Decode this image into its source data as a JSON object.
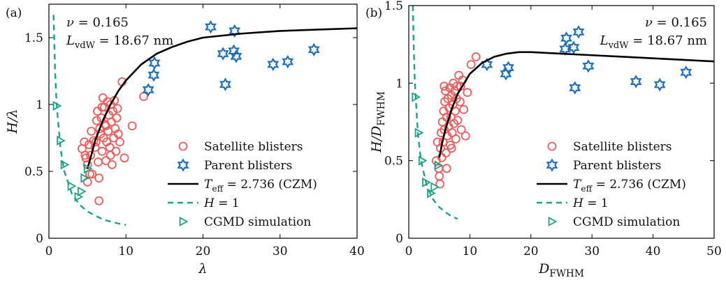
{
  "chart_data": [
    {
      "id": "a",
      "type": "scatter",
      "panel_label": "(a)",
      "xlabel": "λ",
      "ylabel": "H/λ",
      "xlim": [
        0,
        40
      ],
      "ylim": [
        0,
        1.75
      ],
      "xticks": [
        0,
        10,
        20,
        30,
        40
      ],
      "xtick_labels": [
        "0",
        "10",
        "20",
        "30",
        "40"
      ],
      "yticks": [
        0,
        0.5,
        1,
        1.5
      ],
      "ytick_labels": [
        "0",
        "0.5",
        "1",
        "1.5"
      ],
      "grid": false,
      "annotation": {
        "nu": "ν = 0.165",
        "lvdw": "L_vdW = 18.67 nm",
        "position": "top-left"
      },
      "legend": {
        "position": "lower-right",
        "entries": [
          "Satellite blisters",
          "Parent blisters",
          "T_eff = 2.736 (CZM)",
          "H = 1",
          "CGMD simulation"
        ]
      },
      "series": [
        {
          "name": "Satellite blisters",
          "kind": "scatter",
          "marker": "circle",
          "color": "#f05a5a",
          "points": [
            [
              4.3,
              0.67
            ],
            [
              4.6,
              0.72
            ],
            [
              4.8,
              0.6
            ],
            [
              5.0,
              0.55
            ],
            [
              5.2,
              0.7
            ],
            [
              5.4,
              0.62
            ],
            [
              5.6,
              0.48
            ],
            [
              5.8,
              0.73
            ],
            [
              6.0,
              0.68
            ],
            [
              6.2,
              0.88
            ],
            [
              6.3,
              0.95
            ],
            [
              6.4,
              0.57
            ],
            [
              6.5,
              0.45
            ],
            [
              6.6,
              0.82
            ],
            [
              6.7,
              0.78
            ],
            [
              6.8,
              0.9
            ],
            [
              6.9,
              0.65
            ],
            [
              7.0,
              1.05
            ],
            [
              7.1,
              0.75
            ],
            [
              7.2,
              0.98
            ],
            [
              7.3,
              0.85
            ],
            [
              7.4,
              0.58
            ],
            [
              7.5,
              0.72
            ],
            [
              7.6,
              1.02
            ],
            [
              7.7,
              0.8
            ],
            [
              7.8,
              0.92
            ],
            [
              7.9,
              0.68
            ],
            [
              8.0,
              1.0
            ],
            [
              8.1,
              0.87
            ],
            [
              8.2,
              0.55
            ],
            [
              8.3,
              0.95
            ],
            [
              8.4,
              0.75
            ],
            [
              8.5,
              1.03
            ],
            [
              8.6,
              0.82
            ],
            [
              8.7,
              0.65
            ],
            [
              8.8,
              0.9
            ],
            [
              8.9,
              0.97
            ],
            [
              9.0,
              0.78
            ],
            [
              9.2,
              0.72
            ],
            [
              9.5,
              1.17
            ],
            [
              9.8,
              0.6
            ],
            [
              10.8,
              0.84
            ],
            [
              12.3,
              1.06
            ],
            [
              6.5,
              0.28
            ],
            [
              5.0,
              0.42
            ],
            [
              5.3,
              0.48
            ],
            [
              6.1,
              0.72
            ],
            [
              7.4,
              0.84
            ],
            [
              8.0,
              0.62
            ],
            [
              4.7,
              0.62
            ],
            [
              5.5,
              0.8
            ],
            [
              6.9,
              0.98
            ]
          ]
        },
        {
          "name": "Parent blisters",
          "kind": "scatter",
          "marker": "star",
          "color": "#1f6fc0",
          "points": [
            [
              12.9,
              1.11
            ],
            [
              13.6,
              1.22
            ],
            [
              13.7,
              1.31
            ],
            [
              21.0,
              1.58
            ],
            [
              22.6,
              1.38
            ],
            [
              22.9,
              1.15
            ],
            [
              24.0,
              1.4
            ],
            [
              24.1,
              1.55
            ],
            [
              24.3,
              1.36
            ],
            [
              29.1,
              1.3
            ],
            [
              31.0,
              1.32
            ],
            [
              34.4,
              1.41
            ]
          ]
        },
        {
          "name": "T_eff = 2.736 (CZM)",
          "kind": "line",
          "style": "solid",
          "color": "#000000",
          "points": [
            [
              5.0,
              0.52
            ],
            [
              5.5,
              0.62
            ],
            [
              6.0,
              0.73
            ],
            [
              7.0,
              0.88
            ],
            [
              8.0,
              1.0
            ],
            [
              9.0,
              1.1
            ],
            [
              10.0,
              1.18
            ],
            [
              12.0,
              1.3
            ],
            [
              14.0,
              1.38
            ],
            [
              16.0,
              1.43
            ],
            [
              18.0,
              1.47
            ],
            [
              20.0,
              1.5
            ],
            [
              25.0,
              1.53
            ],
            [
              30.0,
              1.55
            ],
            [
              35.0,
              1.56
            ],
            [
              40.0,
              1.57
            ]
          ]
        },
        {
          "name": "H = 1",
          "kind": "line",
          "style": "dashed",
          "color": "#1aa38a",
          "points": [
            [
              0.6,
              1.67
            ],
            [
              0.8,
              1.25
            ],
            [
              1.0,
              1.0
            ],
            [
              1.5,
              0.67
            ],
            [
              2.0,
              0.5
            ],
            [
              3.0,
              0.33
            ],
            [
              4.0,
              0.25
            ],
            [
              5.0,
              0.2
            ],
            [
              6.0,
              0.17
            ],
            [
              7.0,
              0.14
            ],
            [
              8.0,
              0.125
            ],
            [
              9.0,
              0.11
            ],
            [
              10.0,
              0.1
            ]
          ]
        },
        {
          "name": "CGMD simulation",
          "kind": "scatter",
          "marker": "triangle-right",
          "color": "#1aa38a",
          "points": [
            [
              1.0,
              0.99
            ],
            [
              1.5,
              0.73
            ],
            [
              2.0,
              0.55
            ],
            [
              2.9,
              0.39
            ],
            [
              3.8,
              0.31
            ],
            [
              4.2,
              0.35
            ],
            [
              4.6,
              0.45
            ],
            [
              5.0,
              0.52
            ]
          ]
        }
      ]
    },
    {
      "id": "b",
      "type": "scatter",
      "panel_label": "(b)",
      "xlabel": "D_FWHM",
      "ylabel": "H/D_FWHM",
      "xlim": [
        0,
        50
      ],
      "ylim": [
        0,
        1.5
      ],
      "xticks": [
        0,
        10,
        20,
        30,
        40,
        50
      ],
      "xtick_labels": [
        "0",
        "10",
        "20",
        "30",
        "40",
        "50"
      ],
      "yticks": [
        0,
        0.5,
        1,
        1.5
      ],
      "ytick_labels": [
        "0",
        "0.5",
        "1",
        "1.5"
      ],
      "grid": false,
      "annotation": {
        "nu": "ν = 0.165",
        "lvdw": "L_vdW = 18.67 nm",
        "position": "top-right"
      },
      "legend": {
        "position": "lower-right",
        "entries": [
          "Satellite blisters",
          "Parent blisters",
          "T_eff = 2.736 (CZM)",
          "H = 1",
          "CGMD simulation"
        ]
      },
      "series": [
        {
          "name": "Satellite blisters",
          "kind": "scatter",
          "marker": "circle",
          "color": "#f05a5a",
          "points": [
            [
              4.5,
              0.5
            ],
            [
              4.7,
              0.62
            ],
            [
              4.9,
              0.45
            ],
            [
              5.0,
              0.4
            ],
            [
              5.1,
              0.35
            ],
            [
              5.2,
              0.58
            ],
            [
              5.3,
              0.68
            ],
            [
              5.4,
              0.52
            ],
            [
              5.5,
              0.75
            ],
            [
              5.6,
              0.62
            ],
            [
              5.7,
              0.82
            ],
            [
              5.8,
              0.7
            ],
            [
              5.9,
              0.88
            ],
            [
              6.0,
              0.95
            ],
            [
              6.1,
              0.55
            ],
            [
              6.2,
              0.78
            ],
            [
              6.3,
              0.66
            ],
            [
              6.4,
              0.9
            ],
            [
              6.5,
              0.72
            ],
            [
              6.6,
              0.84
            ],
            [
              6.7,
              0.97
            ],
            [
              6.8,
              0.6
            ],
            [
              6.9,
              0.78
            ],
            [
              7.0,
              0.92
            ],
            [
              7.1,
              0.68
            ],
            [
              7.2,
              0.86
            ],
            [
              7.3,
              1.0
            ],
            [
              7.4,
              0.74
            ],
            [
              7.5,
              0.95
            ],
            [
              7.6,
              0.82
            ],
            [
              7.7,
              0.64
            ],
            [
              7.8,
              0.9
            ],
            [
              7.9,
              0.98
            ],
            [
              8.0,
              0.76
            ],
            [
              8.2,
              1.05
            ],
            [
              8.4,
              0.88
            ],
            [
              8.6,
              0.7
            ],
            [
              8.8,
              1.02
            ],
            [
              9.0,
              0.83
            ],
            [
              9.3,
              0.66
            ],
            [
              9.6,
              0.94
            ],
            [
              10.2,
              1.12
            ],
            [
              11.0,
              1.17
            ],
            [
              5.8,
              0.98
            ],
            [
              6.2,
              0.45
            ],
            [
              7.0,
              0.58
            ],
            [
              8.5,
              0.98
            ]
          ]
        },
        {
          "name": "Parent blisters",
          "kind": "scatter",
          "marker": "star",
          "color": "#1f6fc0",
          "points": [
            [
              12.8,
              1.12
            ],
            [
              15.9,
              1.06
            ],
            [
              16.3,
              1.1
            ],
            [
              25.6,
              1.22
            ],
            [
              25.8,
              1.29
            ],
            [
              27.0,
              1.23
            ],
            [
              27.2,
              0.97
            ],
            [
              27.8,
              1.33
            ],
            [
              29.4,
              1.11
            ],
            [
              37.2,
              1.01
            ],
            [
              41.1,
              0.99
            ],
            [
              45.4,
              1.07
            ]
          ]
        },
        {
          "name": "T_eff = 2.736 (CZM)",
          "kind": "line",
          "style": "solid",
          "color": "#000000",
          "points": [
            [
              5.0,
              0.52
            ],
            [
              5.5,
              0.62
            ],
            [
              6.0,
              0.7
            ],
            [
              7.0,
              0.83
            ],
            [
              8.0,
              0.93
            ],
            [
              10.0,
              1.06
            ],
            [
              12.0,
              1.13
            ],
            [
              14.0,
              1.17
            ],
            [
              16.0,
              1.19
            ],
            [
              18.0,
              1.2
            ],
            [
              20.0,
              1.2
            ],
            [
              25.0,
              1.19
            ],
            [
              30.0,
              1.18
            ],
            [
              35.0,
              1.17
            ],
            [
              40.0,
              1.16
            ],
            [
              45.0,
              1.15
            ],
            [
              50.0,
              1.14
            ]
          ]
        },
        {
          "name": "H = 1",
          "kind": "line",
          "style": "dashed",
          "color": "#1aa38a",
          "points": [
            [
              0.67,
              1.5
            ],
            [
              0.8,
              1.25
            ],
            [
              1.0,
              1.0
            ],
            [
              1.5,
              0.67
            ],
            [
              2.0,
              0.5
            ],
            [
              3.0,
              0.33
            ],
            [
              4.0,
              0.25
            ],
            [
              5.0,
              0.2
            ],
            [
              6.0,
              0.17
            ],
            [
              7.0,
              0.14
            ],
            [
              8.0,
              0.125
            ]
          ]
        },
        {
          "name": "CGMD simulation",
          "kind": "scatter",
          "marker": "triangle-right",
          "color": "#1aa38a",
          "points": [
            [
              1.1,
              0.91
            ],
            [
              1.6,
              0.68
            ],
            [
              2.2,
              0.5
            ],
            [
              2.8,
              0.36
            ],
            [
              3.6,
              0.29
            ],
            [
              4.2,
              0.33
            ],
            [
              4.8,
              0.47
            ]
          ]
        }
      ]
    }
  ]
}
